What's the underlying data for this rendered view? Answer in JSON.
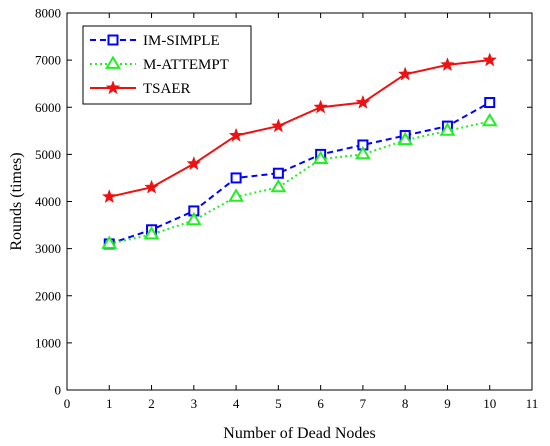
{
  "chart_data": {
    "type": "line",
    "title": "",
    "xlabel": "Number of Dead Nodes",
    "ylabel": "Rounds (times)",
    "xlim": [
      0,
      11
    ],
    "ylim": [
      0,
      8000
    ],
    "xticks": [
      0,
      1,
      2,
      3,
      4,
      5,
      6,
      7,
      8,
      9,
      10,
      11
    ],
    "yticks": [
      0,
      1000,
      2000,
      3000,
      4000,
      5000,
      6000,
      7000,
      8000
    ],
    "grid": false,
    "legend_position": "top-left",
    "x": [
      1,
      2,
      3,
      4,
      5,
      6,
      7,
      8,
      9,
      10
    ],
    "series": [
      {
        "name": "IM-SIMPLE",
        "color": "#0000ff",
        "line_style": "dashed",
        "marker": "square",
        "values": [
          3100,
          3400,
          3800,
          4500,
          4600,
          5000,
          5200,
          5400,
          5600,
          6100
        ]
      },
      {
        "name": "M-ATTEMPT",
        "color": "#22ee22",
        "line_style": "dotted",
        "marker": "triangle",
        "values": [
          3100,
          3300,
          3600,
          4100,
          4300,
          4900,
          5000,
          5300,
          5500,
          5700
        ]
      },
      {
        "name": "TSAER",
        "color": "#ee1111",
        "line_style": "solid",
        "marker": "star",
        "values": [
          4100,
          4300,
          4800,
          5400,
          5600,
          6000,
          6100,
          6700,
          6900,
          7000
        ]
      }
    ]
  }
}
